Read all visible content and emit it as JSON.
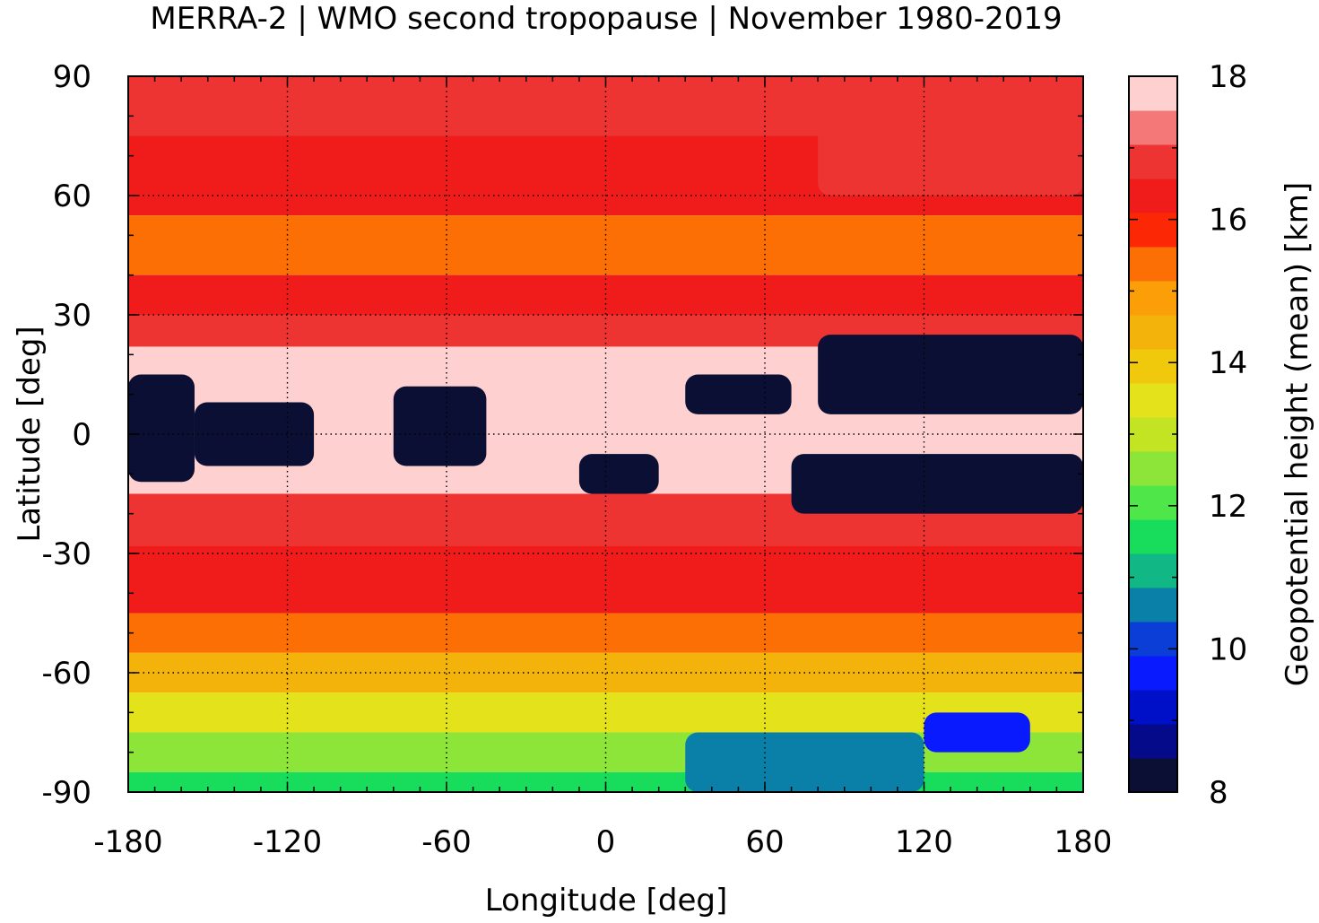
{
  "chart_data": {
    "type": "heatmap",
    "title": "MERRA-2 | WMO second tropopause | November 1980-2019",
    "xlabel": "Longitude [deg]",
    "ylabel": "Latitude [deg]",
    "xlim": [
      -180,
      180
    ],
    "ylim": [
      -90,
      90
    ],
    "xticks": [
      "-180",
      "-120",
      "-60",
      "0",
      "60",
      "120",
      "180"
    ],
    "yticks": [
      "90",
      "60",
      "30",
      "0",
      "-30",
      "-60",
      "-90"
    ],
    "grid": true,
    "colorbar": {
      "label": "Geopotential height (mean) [km]",
      "range": [
        8,
        18
      ],
      "ticks": [
        "18",
        "16",
        "14",
        "12",
        "10",
        "8"
      ],
      "colors": [
        "#0a0f33",
        "#050a8a",
        "#0010c8",
        "#0a1aff",
        "#0a3ed6",
        "#0a7fa8",
        "#11b886",
        "#18dd5c",
        "#4fe64a",
        "#8ee53a",
        "#c2e423",
        "#e4e21b",
        "#f0c90d",
        "#f4b30b",
        "#fb9e07",
        "#fc6f05",
        "#fc2705",
        "#f01c1c",
        "#ee3333",
        "#f47878",
        "#ffd0d0"
      ]
    },
    "bands": [
      {
        "lat": [
          75,
          90
        ],
        "value": 16.6
      },
      {
        "lat": [
          55,
          75
        ],
        "value": 16.3
      },
      {
        "lat": [
          40,
          55
        ],
        "value": 15.6
      },
      {
        "lat": [
          30,
          40
        ],
        "value": 16.3
      },
      {
        "lat": [
          22,
          30
        ],
        "value": 16.6
      },
      {
        "lat": [
          -15,
          22
        ],
        "value": 17.6
      },
      {
        "lat": [
          -28,
          -15
        ],
        "value": 17.0
      },
      {
        "lat": [
          -45,
          -28
        ],
        "value": 16.3
      },
      {
        "lat": [
          -55,
          -45
        ],
        "value": 15.6
      },
      {
        "lat": [
          -65,
          -55
        ],
        "value": 14.6
      },
      {
        "lat": [
          -75,
          -65
        ],
        "value": 13.6
      },
      {
        "lat": [
          -85,
          -75
        ],
        "value": 12.4
      },
      {
        "lat": [
          -90,
          -85
        ],
        "value": 11.6
      }
    ],
    "patches": [
      {
        "lon": [
          -180,
          -155
        ],
        "lat": [
          -12,
          15
        ],
        "value": 8
      },
      {
        "lon": [
          -155,
          -110
        ],
        "lat": [
          -8,
          8
        ],
        "value": 8
      },
      {
        "lon": [
          -80,
          -45
        ],
        "lat": [
          -8,
          12
        ],
        "value": 8
      },
      {
        "lon": [
          30,
          70
        ],
        "lat": [
          5,
          15
        ],
        "value": 8
      },
      {
        "lon": [
          80,
          180
        ],
        "lat": [
          5,
          25
        ],
        "value": 8
      },
      {
        "lon": [
          70,
          180
        ],
        "lat": [
          -20,
          -5
        ],
        "value": 8
      },
      {
        "lon": [
          -10,
          20
        ],
        "lat": [
          -15,
          -5
        ],
        "value": 8
      },
      {
        "lon": [
          30,
          120
        ],
        "lat": [
          -90,
          -75
        ],
        "value": 10.4
      },
      {
        "lon": [
          120,
          160
        ],
        "lat": [
          -80,
          -70
        ],
        "value": 9.6
      },
      {
        "lon": [
          80,
          180
        ],
        "lat": [
          60,
          85
        ],
        "value": 16.9
      }
    ]
  }
}
